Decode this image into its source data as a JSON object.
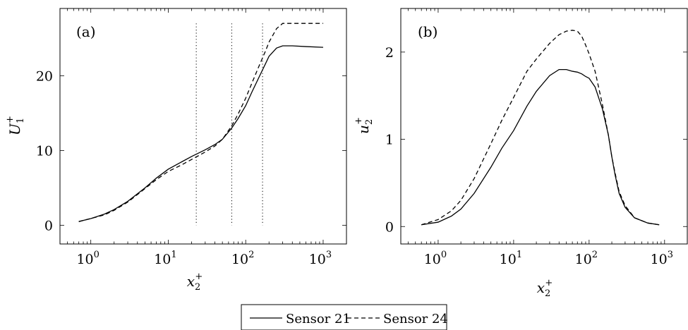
{
  "chart_data": [
    {
      "type": "line",
      "panel_label": "(a)",
      "xlabel": "x",
      "xlabel_sub": "2",
      "xlabel_sup": "+",
      "ylabel": "U",
      "ylabel_sub": "1",
      "ylabel_sup": "+",
      "x_scale": "log",
      "xlim": [
        0.4,
        2000
      ],
      "ylim": [
        -2.5,
        29
      ],
      "x_ticks": [
        1,
        10,
        100,
        1000
      ],
      "x_tick_labels": [
        "10",
        "10",
        "10",
        "10"
      ],
      "x_tick_exponents": [
        "0",
        "1",
        "2",
        "3"
      ],
      "y_ticks": [
        0,
        10,
        20
      ],
      "y_tick_labels": [
        "0",
        "10",
        "20"
      ],
      "vertical_markers": [
        23,
        66,
        165
      ],
      "vertical_marker_top": 27,
      "series": [
        {
          "name": "Sensor 21",
          "style": "solid",
          "x": [
            0.7,
            1,
            1.5,
            2,
            3,
            5,
            7,
            10,
            15,
            20,
            30,
            40,
            50,
            66,
            80,
            100,
            120,
            150,
            180,
            200,
            250,
            300,
            400,
            600,
            1000
          ],
          "y": [
            0.5,
            0.9,
            1.5,
            2.1,
            3.2,
            5.0,
            6.3,
            7.5,
            8.5,
            9.2,
            10.1,
            10.8,
            11.5,
            13.0,
            14.3,
            16.0,
            17.8,
            19.9,
            21.6,
            22.6,
            23.7,
            24.0,
            24.0,
            23.9,
            23.8
          ]
        },
        {
          "name": "Sensor 24",
          "style": "dashed",
          "x": [
            0.7,
            1,
            1.5,
            2,
            3,
            5,
            7,
            10,
            15,
            20,
            30,
            40,
            50,
            66,
            80,
            100,
            120,
            150,
            180,
            200,
            250,
            300,
            400,
            600,
            1000
          ],
          "y": [
            0.5,
            0.9,
            1.4,
            2.0,
            3.1,
            4.9,
            6.1,
            7.2,
            8.1,
            8.8,
            9.8,
            10.6,
            11.5,
            13.3,
            14.9,
            17.0,
            19.0,
            21.4,
            23.3,
            24.5,
            26.3,
            27.0,
            27.0,
            27.0,
            27.0
          ]
        }
      ]
    },
    {
      "type": "line",
      "panel_label": "(b)",
      "xlabel": "x",
      "xlabel_sub": "2",
      "xlabel_sup": "+",
      "ylabel": "u",
      "ylabel_sub": "2",
      "ylabel_sup": "+",
      "x_scale": "log",
      "xlim": [
        0.32,
        2000
      ],
      "ylim": [
        -0.2,
        2.5
      ],
      "x_ticks": [
        1,
        10,
        100,
        1000
      ],
      "x_tick_labels": [
        "10",
        "10",
        "10",
        "10"
      ],
      "x_tick_exponents": [
        "0",
        "1",
        "2",
        "3"
      ],
      "y_ticks": [
        0,
        1,
        2
      ],
      "y_tick_labels": [
        "0",
        "1",
        "2"
      ],
      "series": [
        {
          "name": "Sensor 21",
          "style": "solid",
          "x": [
            0.6,
            1,
            1.5,
            2,
            3,
            5,
            7,
            10,
            15,
            20,
            30,
            40,
            50,
            60,
            70,
            80,
            90,
            100,
            120,
            150,
            180,
            200,
            220,
            250,
            300,
            400,
            600,
            850
          ],
          "y": [
            0.02,
            0.05,
            0.12,
            0.2,
            0.38,
            0.68,
            0.9,
            1.1,
            1.38,
            1.55,
            1.73,
            1.8,
            1.8,
            1.78,
            1.77,
            1.75,
            1.72,
            1.7,
            1.6,
            1.35,
            1.05,
            0.8,
            0.6,
            0.38,
            0.22,
            0.1,
            0.04,
            0.02
          ]
        },
        {
          "name": "Sensor 24",
          "style": "dashed",
          "x": [
            0.6,
            1,
            1.5,
            2,
            3,
            5,
            7,
            10,
            15,
            20,
            30,
            40,
            50,
            60,
            70,
            80,
            90,
            100,
            120,
            150,
            180,
            200,
            220,
            250,
            300,
            400,
            600,
            850
          ],
          "y": [
            0.02,
            0.08,
            0.18,
            0.3,
            0.55,
            0.95,
            1.22,
            1.48,
            1.78,
            1.92,
            2.1,
            2.2,
            2.24,
            2.25,
            2.24,
            2.18,
            2.08,
            1.98,
            1.78,
            1.4,
            1.05,
            0.8,
            0.62,
            0.4,
            0.24,
            0.1,
            0.04,
            0.02
          ]
        }
      ]
    }
  ],
  "legend": {
    "placement": "bottom-center",
    "entries": [
      {
        "label": "Sensor 21",
        "style": "solid"
      },
      {
        "label": "Sensor 24",
        "style": "dashed"
      }
    ]
  }
}
